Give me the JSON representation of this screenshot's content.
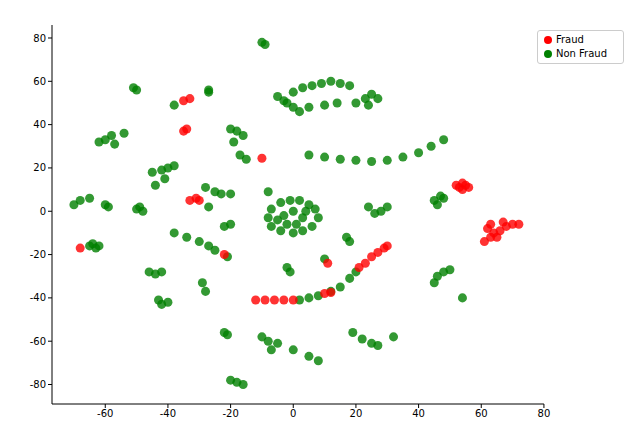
{
  "chart_data": {
    "type": "scatter",
    "xlim": [
      -77,
      80
    ],
    "xticks": [
      -60,
      -40,
      -20,
      0,
      20,
      40,
      60,
      80
    ],
    "ylim": [
      -89,
      86
    ],
    "yticks": [
      -80,
      -60,
      -40,
      -20,
      0,
      20,
      40,
      60,
      80
    ],
    "legend": "upper right",
    "grid": false,
    "series": [
      {
        "name": "Non Fraud",
        "color": "#008000",
        "marker": "circle",
        "x": [
          -10,
          -9,
          -5,
          -2,
          0,
          3,
          6,
          9,
          12,
          15,
          18,
          14,
          10,
          5,
          2,
          0,
          -3,
          20,
          23,
          25,
          27,
          24,
          8,
          7,
          5,
          2,
          -1,
          -4,
          -7,
          -8,
          -7,
          -4,
          0,
          3,
          6,
          3,
          -3,
          0,
          -2,
          4,
          -5,
          1,
          5,
          10,
          15,
          20,
          25,
          30,
          35,
          40,
          44,
          48,
          2,
          5,
          8,
          12,
          15,
          18,
          20,
          -65,
          -64,
          -63,
          -62,
          -70,
          -68,
          -65,
          -60,
          -59,
          -62,
          -60,
          -58,
          -57,
          -54,
          -51,
          -50,
          -50,
          -49,
          -48,
          -45,
          -42,
          -40,
          -38,
          -44,
          -41,
          -46,
          -44,
          -42,
          -43,
          -42,
          -40,
          -38,
          -34,
          -30,
          -27,
          -25,
          -38,
          -27,
          -27,
          -20,
          -18,
          -16,
          -19,
          -17,
          -15,
          -28,
          -25,
          -23,
          -20,
          -27,
          -29,
          -28,
          -22,
          -20,
          -21,
          -22,
          -21,
          -20,
          -18,
          -16,
          -10,
          -8,
          -7,
          -5,
          0,
          5,
          8,
          -8,
          -2,
          -1,
          10,
          17,
          18,
          19,
          22,
          25,
          27,
          24,
          26,
          28,
          30,
          32,
          46,
          48,
          50,
          45,
          45,
          47,
          48,
          46,
          54
        ],
        "y": [
          78,
          77,
          53,
          50,
          55,
          57,
          58,
          59,
          60,
          59,
          58,
          50,
          49,
          48,
          46,
          48,
          51,
          50,
          52,
          54,
          52,
          49,
          -3,
          1,
          3,
          5,
          5,
          4,
          1,
          -3,
          -7,
          -9,
          -10,
          -9,
          -7,
          -3,
          -2,
          0,
          -6,
          0,
          -4,
          -6,
          26,
          25,
          24,
          23.5,
          23,
          23.5,
          25,
          27,
          30,
          33,
          -41,
          -40,
          -39,
          -37,
          -35,
          -31,
          -28,
          -16,
          -15,
          -17,
          -16,
          3,
          5,
          6,
          3,
          2,
          32,
          33,
          35,
          31,
          36,
          57,
          56,
          1,
          2,
          0,
          18,
          19,
          20,
          21,
          12,
          15,
          -28,
          -29,
          -28,
          -41,
          -43,
          -42,
          -10,
          -12,
          -14,
          -16,
          -18,
          49,
          55,
          56,
          38,
          37,
          35,
          32,
          26,
          24,
          11,
          9,
          8,
          8,
          2,
          -33,
          -37,
          -7,
          -6,
          -21,
          -56,
          -57,
          -78,
          -79,
          -80,
          -58,
          -60,
          -64,
          -61,
          -64,
          -67,
          -69,
          9,
          -26,
          -28,
          -22,
          -12,
          -14,
          -56,
          -59,
          -61,
          -62,
          2,
          -1,
          0,
          2,
          -58,
          -30,
          -28,
          -27,
          -33,
          5,
          7,
          6,
          3,
          -40
        ]
      },
      {
        "name": "Fraud",
        "color": "#ff0000",
        "marker": "circle",
        "x": [
          -12,
          -9,
          -6,
          -3,
          0,
          10,
          21,
          23,
          25,
          27,
          29,
          30,
          52,
          53,
          54,
          55,
          56,
          54,
          62,
          63,
          61,
          64,
          66,
          68,
          70,
          72,
          67,
          63,
          65,
          -68,
          -33,
          -31,
          -30,
          -35,
          -34,
          -33,
          -35,
          -22,
          -10,
          11,
          12
        ],
        "y": [
          -41,
          -41,
          -41,
          -41,
          -41,
          -38,
          -26,
          -24,
          -21,
          -19,
          -17,
          -16,
          12,
          11,
          10,
          12,
          11,
          13,
          -8,
          -12,
          -14,
          -10,
          -9,
          -7,
          -6,
          -6,
          -5,
          -6,
          -12,
          -17,
          5,
          6,
          5,
          37,
          38,
          52,
          51,
          -20,
          24.5,
          -24,
          -37.5
        ]
      }
    ]
  }
}
